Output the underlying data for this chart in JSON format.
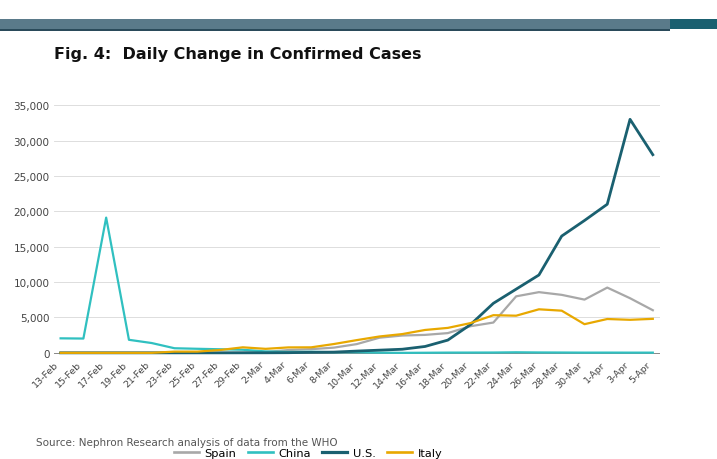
{
  "title": "Fig. 4:  Daily Change in Confirmed Cases",
  "title_fontsize": 11.5,
  "ylim": [
    -700,
    37000
  ],
  "yticks": [
    0,
    5000,
    10000,
    15000,
    20000,
    25000,
    30000,
    35000
  ],
  "background_color": "#ffffff",
  "colors": {
    "Spain": "#a8a8a8",
    "China": "#30c0c0",
    "US": "#1a6070",
    "Italy": "#e8a800"
  },
  "dates": [
    "13-Feb",
    "15-Feb",
    "17-Feb",
    "19-Feb",
    "21-Feb",
    "23-Feb",
    "25-Feb",
    "27-Feb",
    "29-Feb",
    "2-Mar",
    "4-Mar",
    "6-Mar",
    "8-Mar",
    "10-Mar",
    "12-Mar",
    "14-Mar",
    "16-Mar",
    "18-Mar",
    "20-Mar",
    "22-Mar",
    "24-Mar",
    "26-Mar",
    "28-Mar",
    "30-Mar",
    "1-Apr",
    "3-Apr",
    "5-Apr"
  ],
  "china": [
    2051,
    2020,
    19108,
    1843,
    1385,
    650,
    574,
    506,
    435,
    202,
    125,
    153,
    84,
    82,
    28,
    0,
    14,
    34,
    39,
    46,
    78,
    55,
    45,
    31,
    35,
    30,
    30
  ],
  "us": [
    0,
    0,
    0,
    0,
    0,
    0,
    0,
    0,
    4,
    8,
    22,
    75,
    105,
    250,
    380,
    511,
    900,
    1800,
    4000,
    7000,
    9000,
    11000,
    16500,
    18700,
    21000,
    33000,
    28000
  ],
  "italy": [
    0,
    0,
    0,
    0,
    0,
    174,
    175,
    400,
    780,
    566,
    769,
    778,
    1247,
    1797,
    2313,
    2651,
    3233,
    3526,
    4207,
    5322,
    5249,
    6153,
    5959,
    4050,
    4782,
    4668,
    4805
  ],
  "spain": [
    0,
    0,
    0,
    0,
    0,
    0,
    0,
    6,
    40,
    117,
    398,
    519,
    738,
    1235,
    2140,
    2447,
    2538,
    2790,
    3764,
    4282,
    7986,
    8578,
    8195,
    7523,
    9222,
    7719,
    6023
  ],
  "source_text": "Source: Nephron Research analysis of data from the WHO",
  "line_width": 1.6,
  "header_bar_color": "#5a7a8a",
  "right_bar_color": "#1a6070"
}
